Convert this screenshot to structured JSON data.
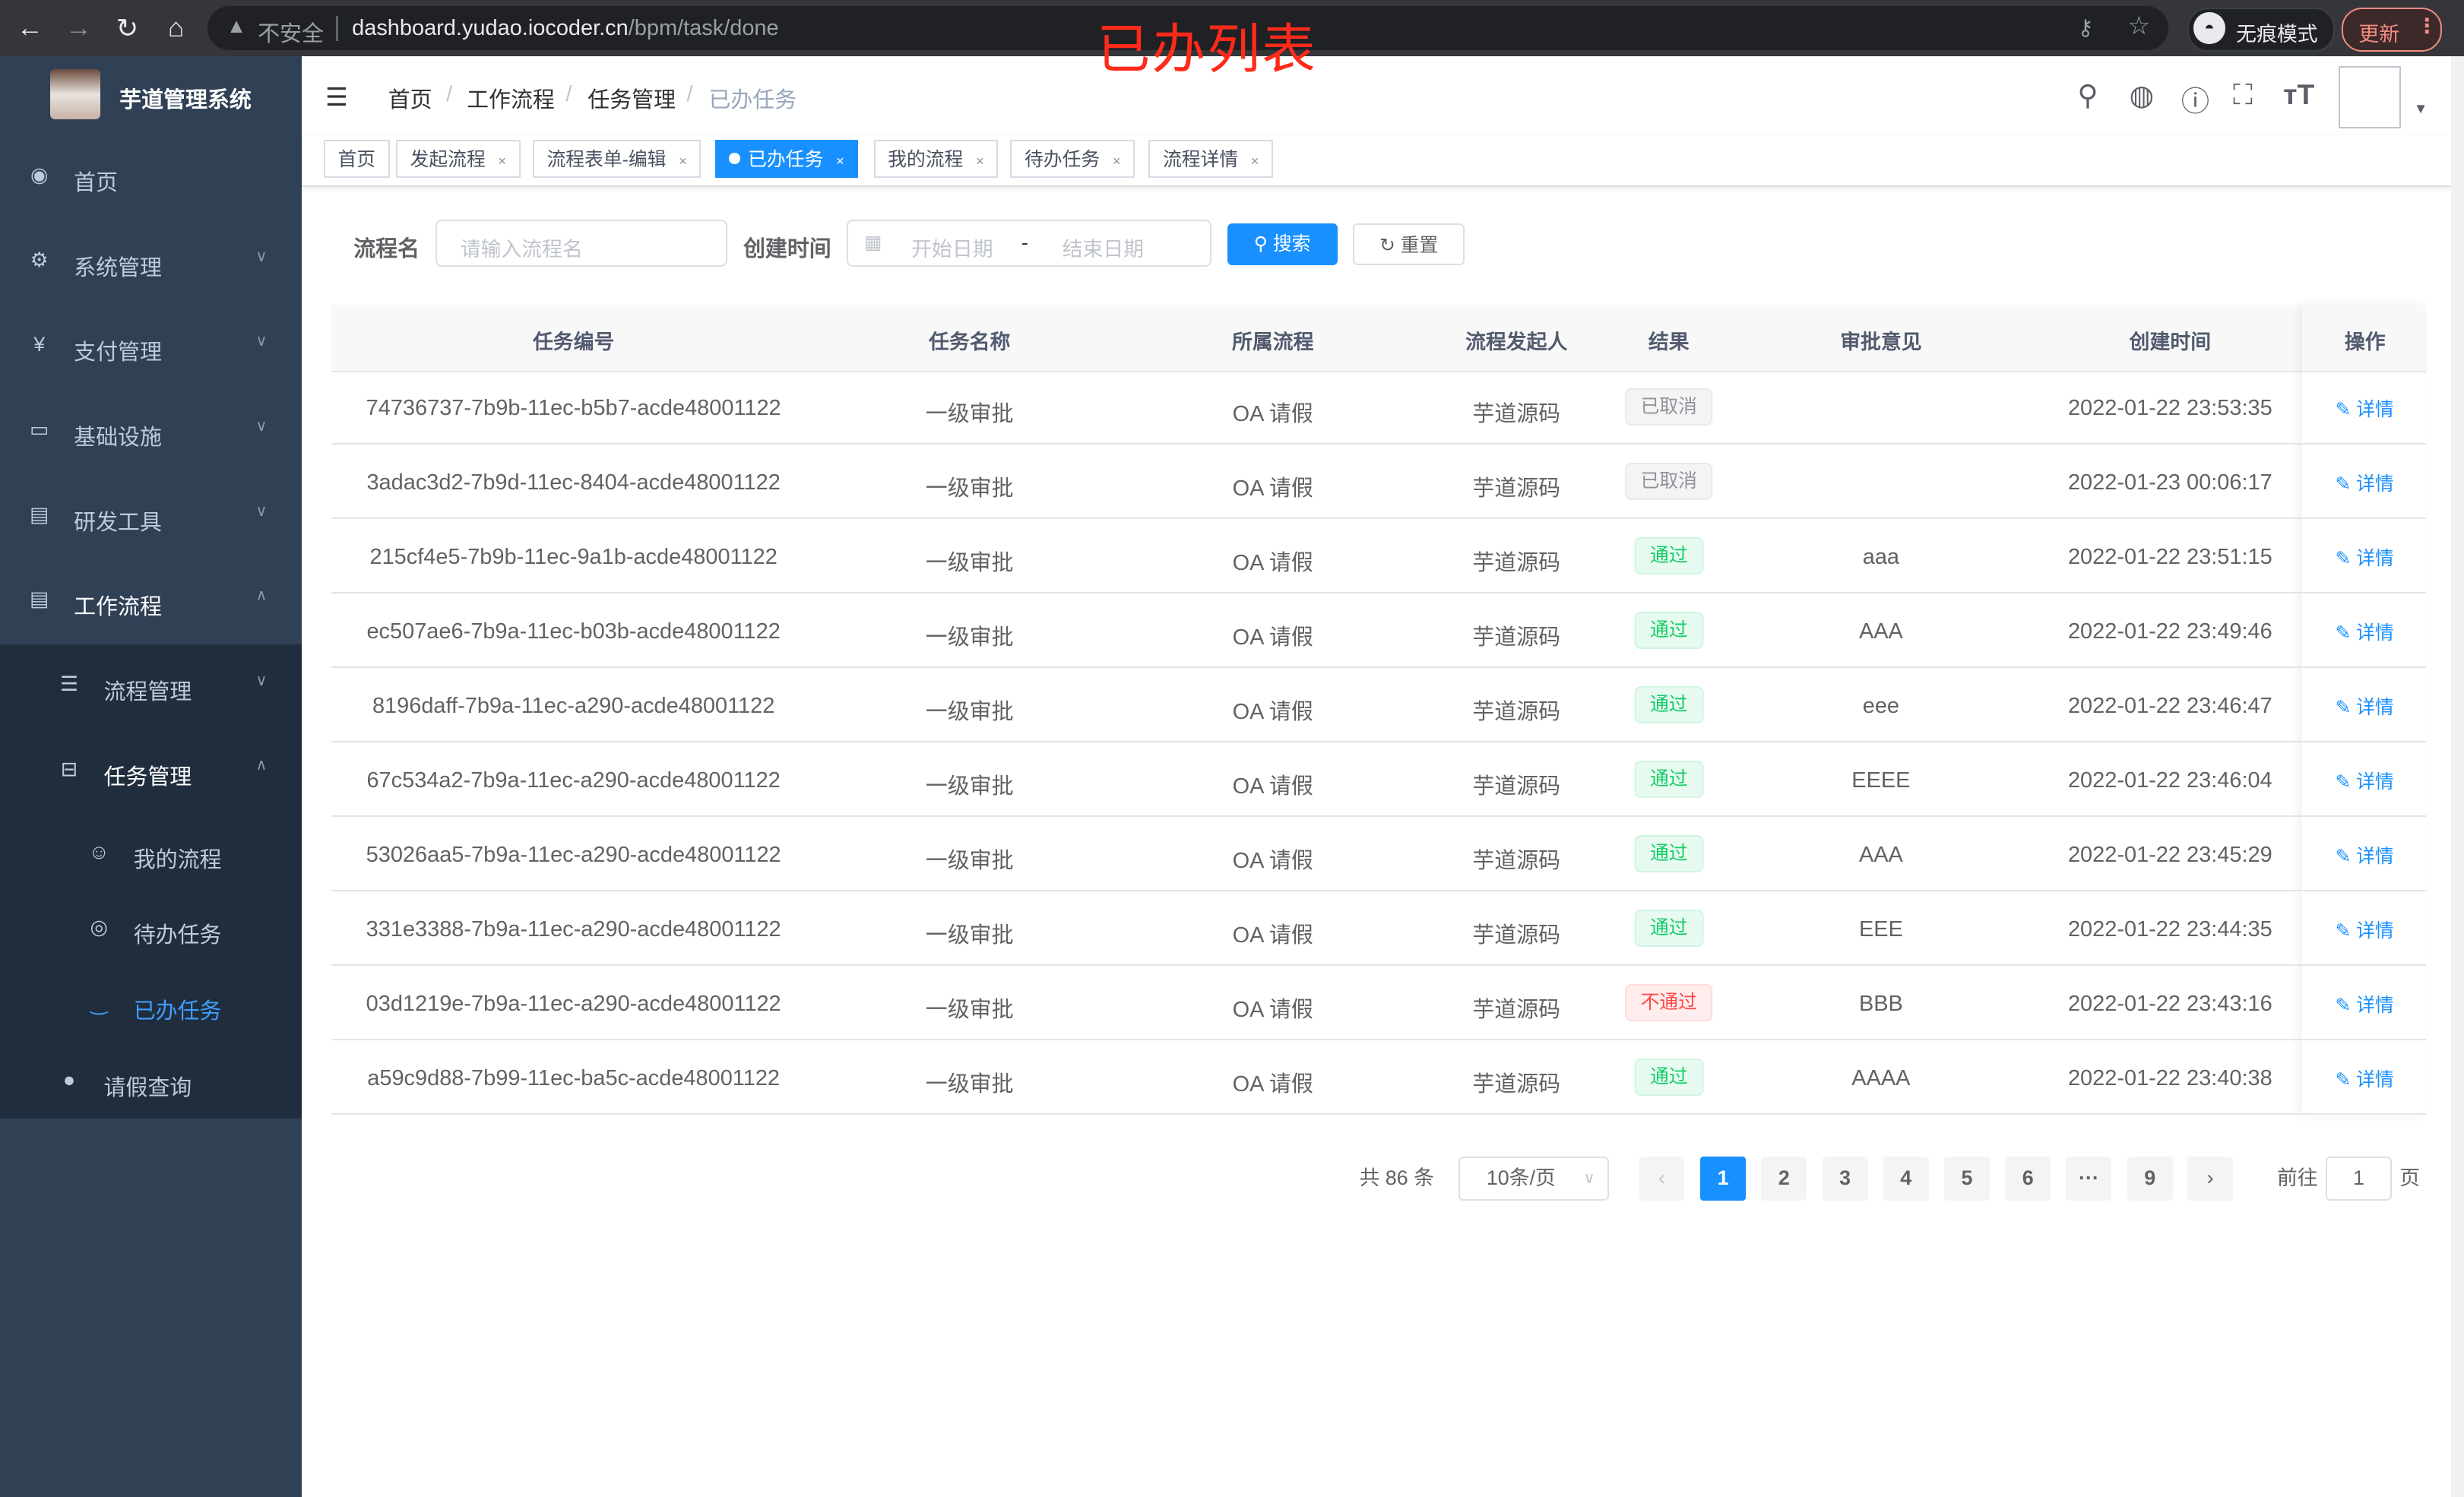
{
  "browser": {
    "insecure_label": "不安全",
    "url_host": "dashboard.yudao.iocoder.cn",
    "url_path": "/bpm/task/done",
    "incognito_label": "无痕模式",
    "update_label": "更新"
  },
  "annotation": "已办列表",
  "sidebar": {
    "brand": "芋道管理系统",
    "items": [
      {
        "label": "首页",
        "icon": "dashboard-icon"
      },
      {
        "label": "系统管理",
        "icon": "gear-icon"
      },
      {
        "label": "支付管理",
        "icon": "yen-icon"
      },
      {
        "label": "基础设施",
        "icon": "monitor-icon"
      },
      {
        "label": "研发工具",
        "icon": "toolbox-icon"
      },
      {
        "label": "工作流程",
        "icon": "toolbox-icon"
      },
      {
        "label": "流程管理",
        "icon": "list-icon"
      },
      {
        "label": "任务管理",
        "icon": "tree-icon"
      },
      {
        "label": "我的流程",
        "icon": "people-icon"
      },
      {
        "label": "待办任务",
        "icon": "eye-icon"
      },
      {
        "label": "已办任务",
        "icon": "eye-closed-icon"
      },
      {
        "label": "请假查询",
        "icon": "user-icon"
      }
    ]
  },
  "breadcrumb": [
    "首页",
    "工作流程",
    "任务管理",
    "已办任务"
  ],
  "tabs": [
    {
      "label": "首页"
    },
    {
      "label": "发起流程"
    },
    {
      "label": "流程表单-编辑"
    },
    {
      "label": "已办任务",
      "active": true
    },
    {
      "label": "我的流程"
    },
    {
      "label": "待办任务"
    },
    {
      "label": "流程详情"
    }
  ],
  "search": {
    "name_label": "流程名",
    "name_placeholder": "请输入流程名",
    "time_label": "创建时间",
    "start_placeholder": "开始日期",
    "range_sep": "-",
    "end_placeholder": "结束日期",
    "search_btn": "搜索",
    "reset_btn": "重置"
  },
  "table": {
    "headers": [
      "任务编号",
      "任务名称",
      "所属流程",
      "流程发起人",
      "结果",
      "审批意见",
      "创建时间",
      "操作"
    ],
    "action_label": "详情",
    "rows": [
      {
        "id": "74736737-7b9b-11ec-b5b7-acde48001122",
        "name": "一级审批",
        "process": "OA 请假",
        "starter": "芋道源码",
        "result": "已取消",
        "status": "cancel",
        "comment": "",
        "time": "2022-01-22 23:53:35"
      },
      {
        "id": "3adac3d2-7b9d-11ec-8404-acde48001122",
        "name": "一级审批",
        "process": "OA 请假",
        "starter": "芋道源码",
        "result": "已取消",
        "status": "cancel",
        "comment": "",
        "time": "2022-01-23 00:06:17"
      },
      {
        "id": "215cf4e5-7b9b-11ec-9a1b-acde48001122",
        "name": "一级审批",
        "process": "OA 请假",
        "starter": "芋道源码",
        "result": "通过",
        "status": "pass",
        "comment": "aaa",
        "time": "2022-01-22 23:51:15"
      },
      {
        "id": "ec507ae6-7b9a-11ec-b03b-acde48001122",
        "name": "一级审批",
        "process": "OA 请假",
        "starter": "芋道源码",
        "result": "通过",
        "status": "pass",
        "comment": "AAA",
        "time": "2022-01-22 23:49:46"
      },
      {
        "id": "8196daff-7b9a-11ec-a290-acde48001122",
        "name": "一级审批",
        "process": "OA 请假",
        "starter": "芋道源码",
        "result": "通过",
        "status": "pass",
        "comment": "eee",
        "time": "2022-01-22 23:46:47"
      },
      {
        "id": "67c534a2-7b9a-11ec-a290-acde48001122",
        "name": "一级审批",
        "process": "OA 请假",
        "starter": "芋道源码",
        "result": "通过",
        "status": "pass",
        "comment": "EEEE",
        "time": "2022-01-22 23:46:04"
      },
      {
        "id": "53026aa5-7b9a-11ec-a290-acde48001122",
        "name": "一级审批",
        "process": "OA 请假",
        "starter": "芋道源码",
        "result": "通过",
        "status": "pass",
        "comment": "AAA",
        "time": "2022-01-22 23:45:29"
      },
      {
        "id": "331e3388-7b9a-11ec-a290-acde48001122",
        "name": "一级审批",
        "process": "OA 请假",
        "starter": "芋道源码",
        "result": "通过",
        "status": "pass",
        "comment": "EEE",
        "time": "2022-01-22 23:44:35"
      },
      {
        "id": "03d1219e-7b9a-11ec-a290-acde48001122",
        "name": "一级审批",
        "process": "OA 请假",
        "starter": "芋道源码",
        "result": "不通过",
        "status": "reject",
        "comment": "BBB",
        "time": "2022-01-22 23:43:16"
      },
      {
        "id": "a59c9d88-7b99-11ec-ba5c-acde48001122",
        "name": "一级审批",
        "process": "OA 请假",
        "starter": "芋道源码",
        "result": "通过",
        "status": "pass",
        "comment": "AAAA",
        "time": "2022-01-22 23:40:38"
      }
    ]
  },
  "pagination": {
    "total": "共 86 条",
    "page_size": "10条/页",
    "pages": [
      "1",
      "2",
      "3",
      "4",
      "5",
      "6",
      "···",
      "9"
    ],
    "current": "1",
    "goto_label": "前往",
    "goto_value": "1",
    "page_suffix": "页"
  },
  "colors": {
    "accent": "#1890ff",
    "sidebar": "#304156",
    "pass": "#13ce66",
    "reject": "#ff4949"
  }
}
